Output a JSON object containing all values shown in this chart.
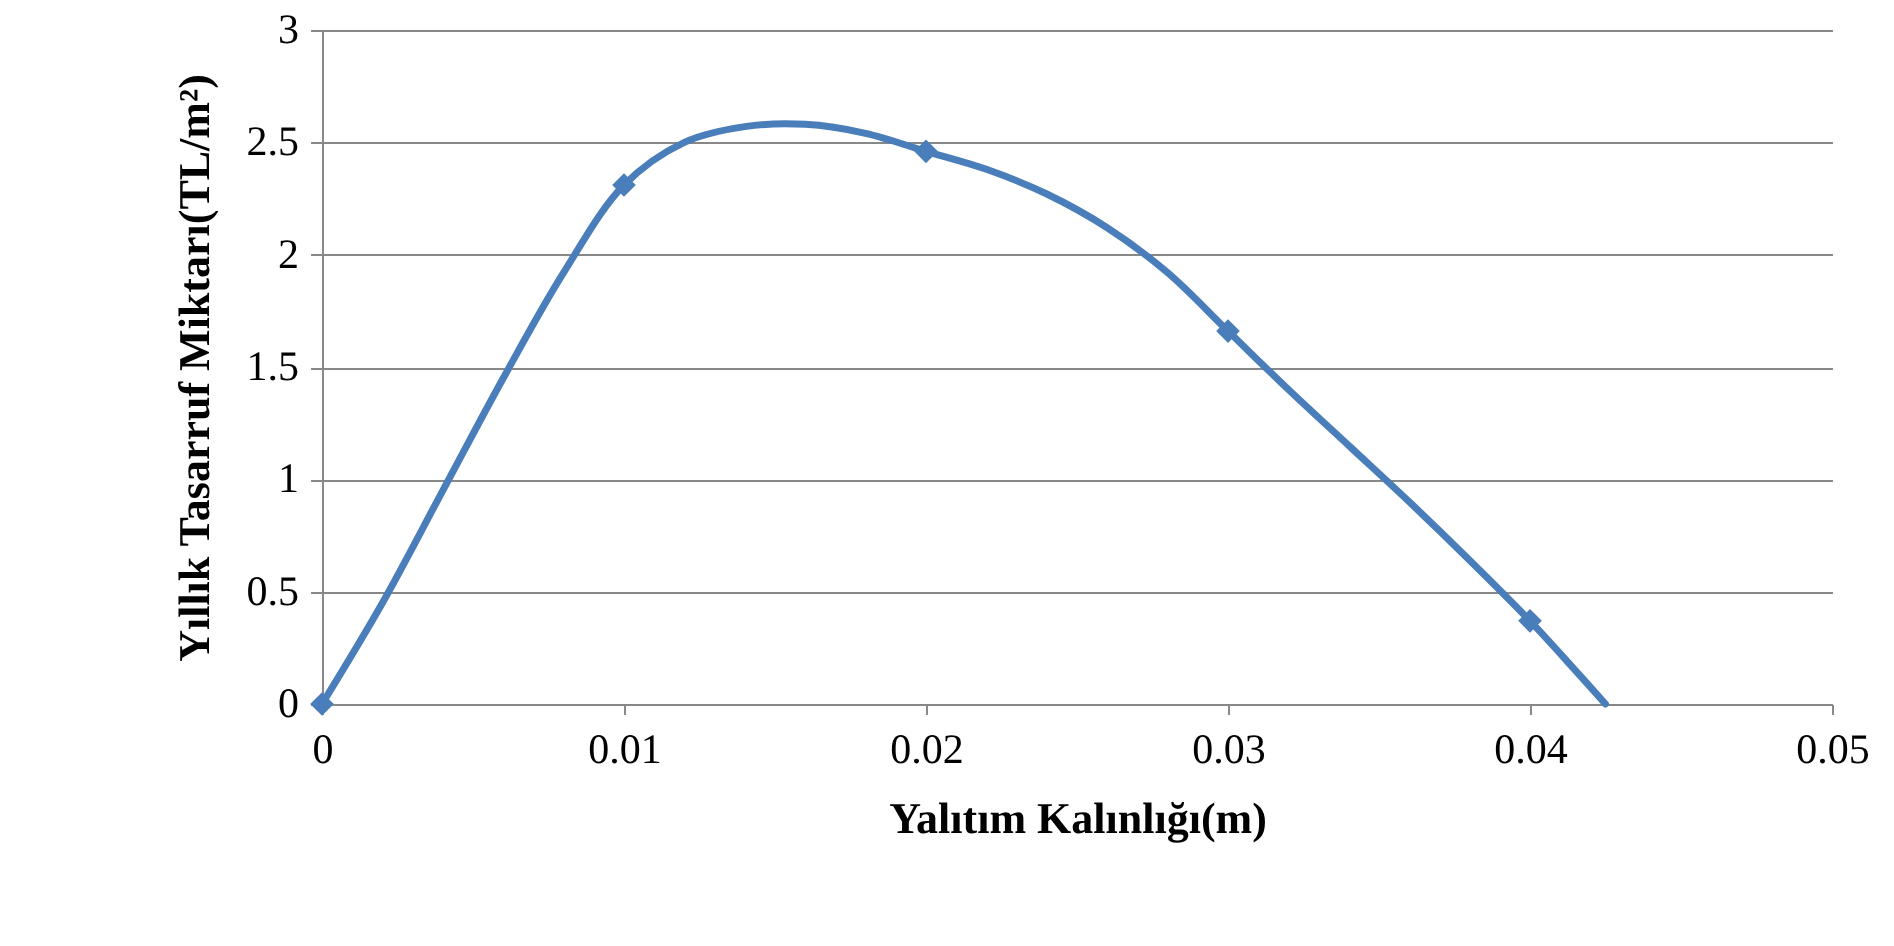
{
  "chart_data": {
    "type": "line",
    "xlabel": "Yalıtım Kalınlığı(m)",
    "ylabel": "Yıllık Tasarruf Miktarı(TL/m²)",
    "xlim": [
      0,
      0.05
    ],
    "xticks": [
      0,
      0.01,
      0.02,
      0.03,
      0.04,
      0.05
    ],
    "ylim": [
      0,
      3
    ],
    "yticks": [
      0,
      0.5,
      1,
      1.5,
      2,
      2.5,
      3
    ],
    "grid": "y",
    "series": [
      {
        "type": "line",
        "color": "#4a7ebb",
        "line_style": "solid",
        "x": [
          0,
          0.002,
          0.004,
          0.006,
          0.008,
          0.01,
          0.012,
          0.014,
          0.016,
          0.018,
          0.02,
          0.022,
          0.024,
          0.026,
          0.028,
          0.03,
          0.032,
          0.034,
          0.036,
          0.038,
          0.04,
          0.0415,
          0.0425
        ],
        "values": [
          0,
          0.45,
          0.95,
          1.45,
          1.92,
          2.31,
          2.5,
          2.57,
          2.58,
          2.54,
          2.46,
          2.38,
          2.27,
          2.12,
          1.92,
          1.66,
          1.4,
          1.15,
          0.9,
          0.64,
          0.37,
          0.15,
          0
        ]
      },
      {
        "type": "scatter",
        "color": "#4a7ebb",
        "marker": "diamond",
        "x": [
          0,
          0.01,
          0.02,
          0.03,
          0.04
        ],
        "values": [
          0,
          2.31,
          2.46,
          1.66,
          0.37
        ]
      }
    ]
  }
}
